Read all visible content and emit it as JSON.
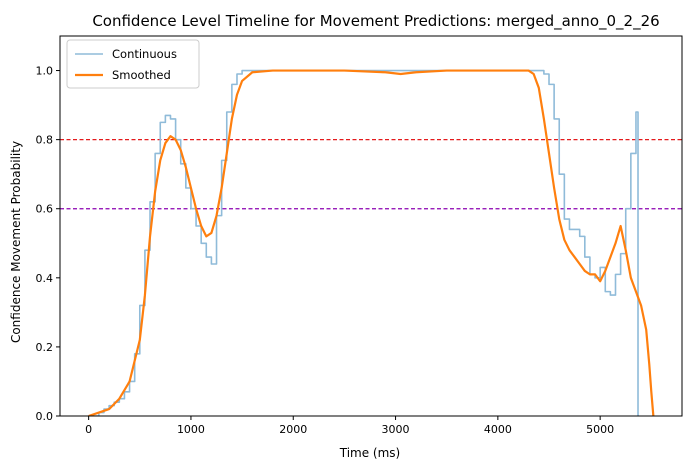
{
  "chart_data": {
    "type": "line",
    "title": "Confidence Level Timeline for Movement Predictions: merged_anno_0_2_26",
    "xlabel": "Time (ms)",
    "ylabel": "Confidence Movement Probability",
    "xlim": [
      -280,
      5800
    ],
    "ylim": [
      0,
      1.1
    ],
    "xticks": [
      0,
      1000,
      2000,
      3000,
      4000,
      5000
    ],
    "xtick_labels": [
      "0",
      "1000",
      "2000",
      "3000",
      "4000",
      "5000"
    ],
    "yticks": [
      0.0,
      0.2,
      0.4,
      0.6,
      0.8,
      1.0
    ],
    "ytick_labels": [
      "0.0",
      "0.2",
      "0.4",
      "0.6",
      "0.8",
      "1.0"
    ],
    "grid": false,
    "legend_position": "top-left",
    "reference_lines": [
      {
        "y": 0.8,
        "color": "#e41a1c",
        "style": "dashed"
      },
      {
        "y": 0.6,
        "color": "#8b00b0",
        "style": "dashed"
      }
    ],
    "series": [
      {
        "name": "Continuous",
        "color": "#8fbbd9",
        "step": true,
        "x": [
          0,
          100,
          150,
          200,
          250,
          300,
          350,
          400,
          450,
          500,
          550,
          600,
          650,
          700,
          750,
          800,
          850,
          900,
          950,
          1000,
          1050,
          1100,
          1150,
          1200,
          1250,
          1300,
          1350,
          1400,
          1450,
          1500,
          1550,
          1600,
          1700,
          2000,
          3000,
          4000,
          4400,
          4450,
          4500,
          4550,
          4600,
          4650,
          4700,
          4750,
          4800,
          4850,
          4900,
          4950,
          5000,
          5050,
          5100,
          5150,
          5200,
          5250,
          5300,
          5350,
          5370,
          5380
        ],
        "values": [
          0.0,
          0.01,
          0.02,
          0.03,
          0.04,
          0.05,
          0.07,
          0.1,
          0.18,
          0.32,
          0.48,
          0.62,
          0.76,
          0.85,
          0.87,
          0.86,
          0.8,
          0.73,
          0.66,
          0.6,
          0.55,
          0.5,
          0.46,
          0.44,
          0.58,
          0.74,
          0.88,
          0.96,
          0.99,
          1.0,
          1.0,
          1.0,
          1.0,
          1.0,
          1.0,
          1.0,
          1.0,
          0.99,
          0.96,
          0.86,
          0.7,
          0.57,
          0.54,
          0.54,
          0.52,
          0.46,
          0.41,
          0.4,
          0.43,
          0.36,
          0.35,
          0.41,
          0.47,
          0.6,
          0.76,
          0.88,
          0.0,
          0.0
        ]
      },
      {
        "name": "Smoothed",
        "color": "#ff7f0e",
        "step": false,
        "x": [
          0,
          100,
          200,
          300,
          400,
          500,
          550,
          600,
          650,
          700,
          750,
          800,
          850,
          900,
          950,
          1000,
          1050,
          1100,
          1150,
          1200,
          1250,
          1300,
          1350,
          1400,
          1450,
          1500,
          1600,
          1800,
          2500,
          2900,
          3050,
          3200,
          3500,
          4000,
          4300,
          4350,
          4400,
          4450,
          4500,
          4550,
          4600,
          4650,
          4700,
          4750,
          4800,
          4850,
          4900,
          4950,
          5000,
          5050,
          5100,
          5150,
          5200,
          5250,
          5300,
          5350,
          5400,
          5450,
          5480,
          5500,
          5520
        ],
        "values": [
          0.0,
          0.01,
          0.02,
          0.05,
          0.1,
          0.22,
          0.35,
          0.52,
          0.65,
          0.74,
          0.79,
          0.81,
          0.8,
          0.77,
          0.72,
          0.66,
          0.6,
          0.55,
          0.52,
          0.53,
          0.58,
          0.66,
          0.76,
          0.86,
          0.93,
          0.97,
          0.995,
          1.0,
          1.0,
          0.995,
          0.99,
          0.995,
          1.0,
          1.0,
          1.0,
          0.99,
          0.95,
          0.86,
          0.76,
          0.66,
          0.57,
          0.51,
          0.48,
          0.46,
          0.44,
          0.42,
          0.41,
          0.41,
          0.39,
          0.42,
          0.46,
          0.5,
          0.55,
          0.48,
          0.4,
          0.36,
          0.32,
          0.25,
          0.15,
          0.07,
          0.0
        ]
      }
    ]
  }
}
